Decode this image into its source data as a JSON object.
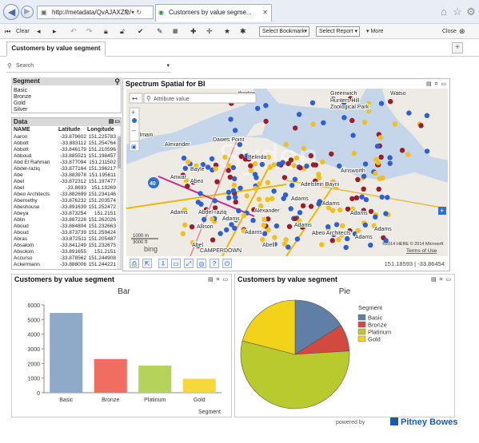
{
  "browser": {
    "address": "http://metadata/QvAJAXZfc/",
    "tab_title": "Customers by value segme...",
    "address_icons": "⚲ ▾ ↻"
  },
  "toolbar": {
    "clear": "Clear",
    "select_bookmark": "Select Bookmark",
    "select_report": "Select Report",
    "more": "More",
    "close": "Close"
  },
  "sheet": {
    "tab_label": "Customers by value segment",
    "add_label": "+"
  },
  "search": {
    "placeholder": "Search"
  },
  "segment_panel": {
    "title": "Segment",
    "items": [
      "Basic",
      "Bronze",
      "Gold",
      "Silver"
    ]
  },
  "data_panel": {
    "title": "Data",
    "columns": [
      "NAME",
      "Latitude",
      "Longitude"
    ],
    "rows": [
      [
        "Aaron",
        "-33.879602",
        "151.225783"
      ],
      [
        "Abbott",
        "-33.883112",
        "151.254764"
      ],
      [
        "Abbott",
        "-33.846179",
        "151.210596"
      ],
      [
        "Abboud",
        "-33.885521",
        "151.198457"
      ],
      [
        "Abd El Rahman",
        "-33.877094",
        "151.211502"
      ],
      [
        "Abdel-raziq",
        "-33.877164",
        "151.196217"
      ],
      [
        "Abe",
        "-33.883978",
        "151.195611"
      ],
      [
        "Abel",
        "-33.872312",
        "151.197477"
      ],
      [
        "Abel",
        "-33.8693",
        "151.19269"
      ],
      [
        "Abeo Architects",
        "-33.882699",
        "151.234146"
      ],
      [
        "Abernethy",
        "-33.876232",
        "151.203574"
      ],
      [
        "Abeshouse",
        "-33.891639",
        "151.252472"
      ],
      [
        "Abeya",
        "-33.873254",
        "151.2151"
      ],
      [
        "Ablin",
        "-33.887226",
        "151.262026"
      ],
      [
        "Aboud",
        "-33.884804",
        "151.232663"
      ],
      [
        "Aboud",
        "-33.873739",
        "151.259424"
      ],
      [
        "Abras",
        "-33.872511",
        "151.205487"
      ],
      [
        "Absalom",
        "-33.841249",
        "151.232675"
      ],
      [
        "Absolom",
        "-33.891655",
        "151.2151"
      ],
      [
        "Accurso",
        "-33.878562",
        "151.244908"
      ],
      [
        "Ackermann",
        "-33.888006",
        "151.244221"
      ]
    ]
  },
  "map_panel": {
    "title": "Spectrum Spatial for BI",
    "attribute_placeholder": "Attribute value",
    "coordinates": "151.18593 | -33.86454",
    "zoom_level": "40",
    "scale_1": "1000 m",
    "scale_2": "3000 ft",
    "terms": "Terms of Use",
    "copyright": "©2014 HERE © 2014 Microsoft",
    "bing": "bing",
    "labels": [
      {
        "text": "therton"
      },
      {
        "text": "Greenwich"
      },
      {
        "text": "Watso"
      },
      {
        "text": "Hunters Hill"
      },
      {
        "text": "Zoological Park"
      },
      {
        "text": "Alexander"
      },
      {
        "text": "Dawes Point"
      },
      {
        "text": "Belinda"
      },
      {
        "text": "Almain"
      },
      {
        "text": "Bayle"
      },
      {
        "text": "Anwar"
      },
      {
        "text": "Adelstein Bayni"
      },
      {
        "text": "Abeo"
      },
      {
        "text": "Ainsworth"
      },
      {
        "text": "Adams"
      },
      {
        "text": "Abdel-raziq"
      },
      {
        "text": "Adams"
      },
      {
        "text": "Alexander"
      },
      {
        "text": "Adams"
      },
      {
        "text": "Adams"
      },
      {
        "text": "Abeo Architects"
      },
      {
        "text": "Allison"
      },
      {
        "text": "Abel"
      },
      {
        "text": "Adams"
      },
      {
        "text": "Adams"
      },
      {
        "text": "Adams"
      },
      {
        "text": "CAMPERDOWN"
      },
      {
        "text": "Adams"
      },
      {
        "text": "Abell"
      },
      {
        "text": "Adams"
      }
    ]
  },
  "bar_panel": {
    "title": "Customers by value segment"
  },
  "pie_panel": {
    "title": "Customers by value segment"
  },
  "chart_data": [
    {
      "type": "bar",
      "title": "Bar",
      "xlabel": "Segment",
      "ylabel": "",
      "categories": [
        "Basic",
        "Bronze",
        "Platinum",
        "Gold"
      ],
      "values": [
        5450,
        2300,
        1850,
        950
      ],
      "colors": [
        "#8fa9c9",
        "#f06e5f",
        "#b5d35a",
        "#f6d83a"
      ],
      "ylim": [
        0,
        6000
      ],
      "yticks": [
        "0",
        "1000",
        "2000",
        "3000",
        "4000",
        "5000",
        "6000"
      ],
      "grid": false,
      "legend": "none"
    },
    {
      "type": "pie",
      "title": "Pie",
      "legend_title": "Segment",
      "labels": [
        "Basic",
        "Bronze",
        "Platinum",
        "Gold"
      ],
      "values": [
        16,
        8,
        55,
        21
      ],
      "colors": [
        "#5f7fa7",
        "#d1493f",
        "#b8ca2e",
        "#f3d21a"
      ],
      "legend": "top-right"
    }
  ],
  "footer": {
    "powered_by": "powered by",
    "brand": "Pitney Bowes"
  },
  "colors": {
    "map_water": "#c6d6ea",
    "map_land": "#eeebe4",
    "marker_blue": "#2f5fd0",
    "marker_red": "#9b1c2a",
    "marker_yellow": "#f0c020",
    "brand": "#1a5aa8"
  }
}
